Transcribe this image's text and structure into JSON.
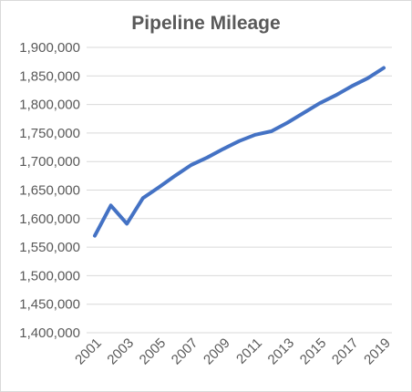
{
  "chart_data": {
    "type": "line",
    "title": "Pipeline Mileage",
    "xlabel": "",
    "ylabel": "",
    "x": [
      2001,
      2002,
      2003,
      2004,
      2005,
      2006,
      2007,
      2008,
      2009,
      2010,
      2011,
      2012,
      2013,
      2014,
      2015,
      2016,
      2017,
      2018,
      2019
    ],
    "series": [
      {
        "values": [
          1570000,
          1623000,
          1591000,
          1636000,
          1655000,
          1675000,
          1694000,
          1707000,
          1722000,
          1736000,
          1747000,
          1753000,
          1768000,
          1785000,
          1802000,
          1816000,
          1832000,
          1846000,
          1864000
        ],
        "color": "#4472c4"
      }
    ],
    "ylim": [
      1400000,
      1900000
    ],
    "y_ticks": [
      "1,400,000",
      "1,450,000",
      "1,500,000",
      "1,550,000",
      "1,600,000",
      "1,650,000",
      "1,700,000",
      "1,750,000",
      "1,800,000",
      "1,850,000",
      "1,900,000"
    ],
    "x_ticks": [
      "2001",
      "2003",
      "2005",
      "2007",
      "2009",
      "2011",
      "2013",
      "2015",
      "2017",
      "2019"
    ],
    "grid": true,
    "legend": "none",
    "gridline_color": "#d9d9d9",
    "text_color": "#595959"
  }
}
